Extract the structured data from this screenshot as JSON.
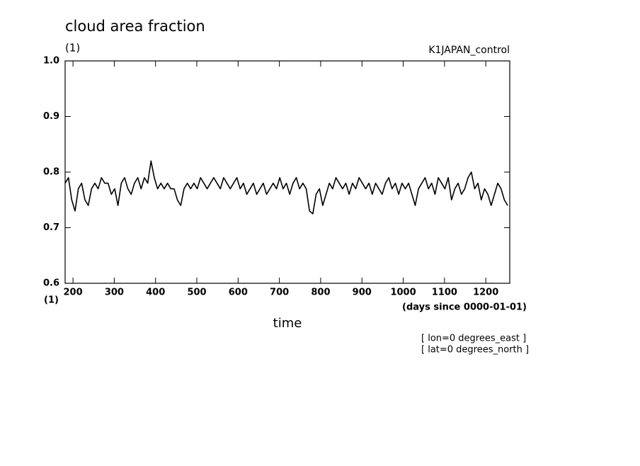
{
  "chart_data": {
    "type": "line",
    "title": "cloud area fraction",
    "y_unit": "(1)",
    "x_unit_left": "(1)",
    "run_label": "K1JAPAN_control",
    "x_unit": "(days since 0000-01-01)",
    "x_label": "time",
    "annotations": [
      "[ lon=0 degrees_east ]",
      "[ lat=0 degrees_north ]"
    ],
    "color": "#000000",
    "xlim": [
      181,
      1258
    ],
    "ylim": [
      0.6,
      1.0
    ],
    "xticks": [
      200,
      300,
      400,
      500,
      600,
      700,
      800,
      900,
      1000,
      1100,
      1200
    ],
    "yticks": [
      0.6,
      0.7,
      0.8,
      0.9,
      {
        "value": 1,
        "label": "1.0"
      }
    ],
    "x": [
      181,
      189,
      197,
      205,
      213,
      221,
      229,
      237,
      245,
      253,
      261,
      269,
      277,
      285,
      293,
      301,
      309,
      317,
      325,
      333,
      341,
      349,
      357,
      365,
      373,
      381,
      389,
      397,
      405,
      413,
      421,
      429,
      437,
      445,
      453,
      461,
      469,
      477,
      485,
      493,
      501,
      509,
      517,
      525,
      533,
      541,
      549,
      557,
      565,
      573,
      581,
      589,
      597,
      605,
      613,
      621,
      629,
      637,
      645,
      653,
      661,
      669,
      677,
      685,
      693,
      701,
      709,
      717,
      725,
      733,
      741,
      749,
      757,
      765,
      773,
      781,
      789,
      797,
      805,
      813,
      821,
      829,
      837,
      845,
      853,
      861,
      869,
      877,
      885,
      893,
      901,
      909,
      917,
      925,
      933,
      941,
      949,
      957,
      965,
      973,
      981,
      989,
      997,
      1005,
      1013,
      1021,
      1029,
      1037,
      1045,
      1053,
      1061,
      1069,
      1077,
      1085,
      1093,
      1101,
      1109,
      1117,
      1125,
      1133,
      1141,
      1149,
      1157,
      1165,
      1173,
      1181,
      1189,
      1197,
      1205,
      1213,
      1221,
      1229,
      1237,
      1245,
      1253
    ],
    "values": [
      0.78,
      0.79,
      0.75,
      0.73,
      0.77,
      0.78,
      0.75,
      0.74,
      0.77,
      0.78,
      0.77,
      0.79,
      0.78,
      0.78,
      0.76,
      0.77,
      0.74,
      0.78,
      0.79,
      0.77,
      0.76,
      0.78,
      0.79,
      0.77,
      0.79,
      0.78,
      0.82,
      0.79,
      0.77,
      0.78,
      0.77,
      0.78,
      0.77,
      0.77,
      0.75,
      0.74,
      0.77,
      0.78,
      0.77,
      0.78,
      0.77,
      0.79,
      0.78,
      0.77,
      0.78,
      0.79,
      0.78,
      0.77,
      0.79,
      0.78,
      0.77,
      0.78,
      0.79,
      0.77,
      0.78,
      0.76,
      0.77,
      0.78,
      0.76,
      0.77,
      0.78,
      0.76,
      0.77,
      0.78,
      0.77,
      0.79,
      0.77,
      0.78,
      0.76,
      0.78,
      0.79,
      0.77,
      0.78,
      0.77,
      0.73,
      0.725,
      0.76,
      0.77,
      0.74,
      0.76,
      0.78,
      0.77,
      0.79,
      0.78,
      0.77,
      0.78,
      0.76,
      0.78,
      0.77,
      0.79,
      0.78,
      0.77,
      0.78,
      0.76,
      0.78,
      0.77,
      0.76,
      0.78,
      0.79,
      0.77,
      0.78,
      0.76,
      0.78,
      0.77,
      0.78,
      0.76,
      0.74,
      0.77,
      0.78,
      0.79,
      0.77,
      0.78,
      0.76,
      0.79,
      0.78,
      0.77,
      0.79,
      0.75,
      0.77,
      0.78,
      0.76,
      0.77,
      0.79,
      0.8,
      0.77,
      0.78,
      0.75,
      0.77,
      0.76,
      0.74,
      0.76,
      0.78,
      0.77,
      0.75,
      0.74
    ]
  }
}
